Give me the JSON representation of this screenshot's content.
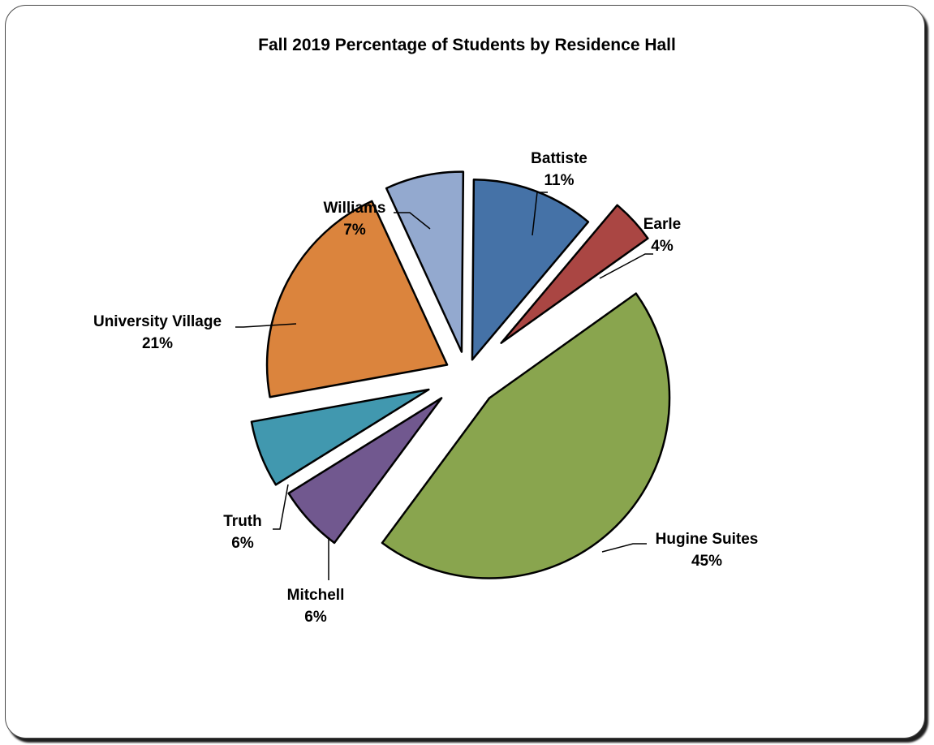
{
  "chart_data": {
    "type": "pie",
    "title": "Fall 2019 Percentage of Students by Residence Hall",
    "legend": "none",
    "slices": [
      {
        "name": "Battiste",
        "value": 11,
        "label": "11%",
        "color": "#4572A7"
      },
      {
        "name": "Earle",
        "value": 4,
        "label": "4%",
        "color": "#AA4643"
      },
      {
        "name": "Hugine Suites",
        "value": 45,
        "label": "45%",
        "color": "#89A54E"
      },
      {
        "name": "Mitchell",
        "value": 6,
        "label": "6%",
        "color": "#71588F"
      },
      {
        "name": "Truth",
        "value": 6,
        "label": "6%",
        "color": "#4198AF"
      },
      {
        "name": "University Village",
        "value": 21,
        "label": "21%",
        "color": "#DB843D"
      },
      {
        "name": "Williams",
        "value": 7,
        "label": "7%",
        "color": "#93A9CF"
      }
    ]
  }
}
